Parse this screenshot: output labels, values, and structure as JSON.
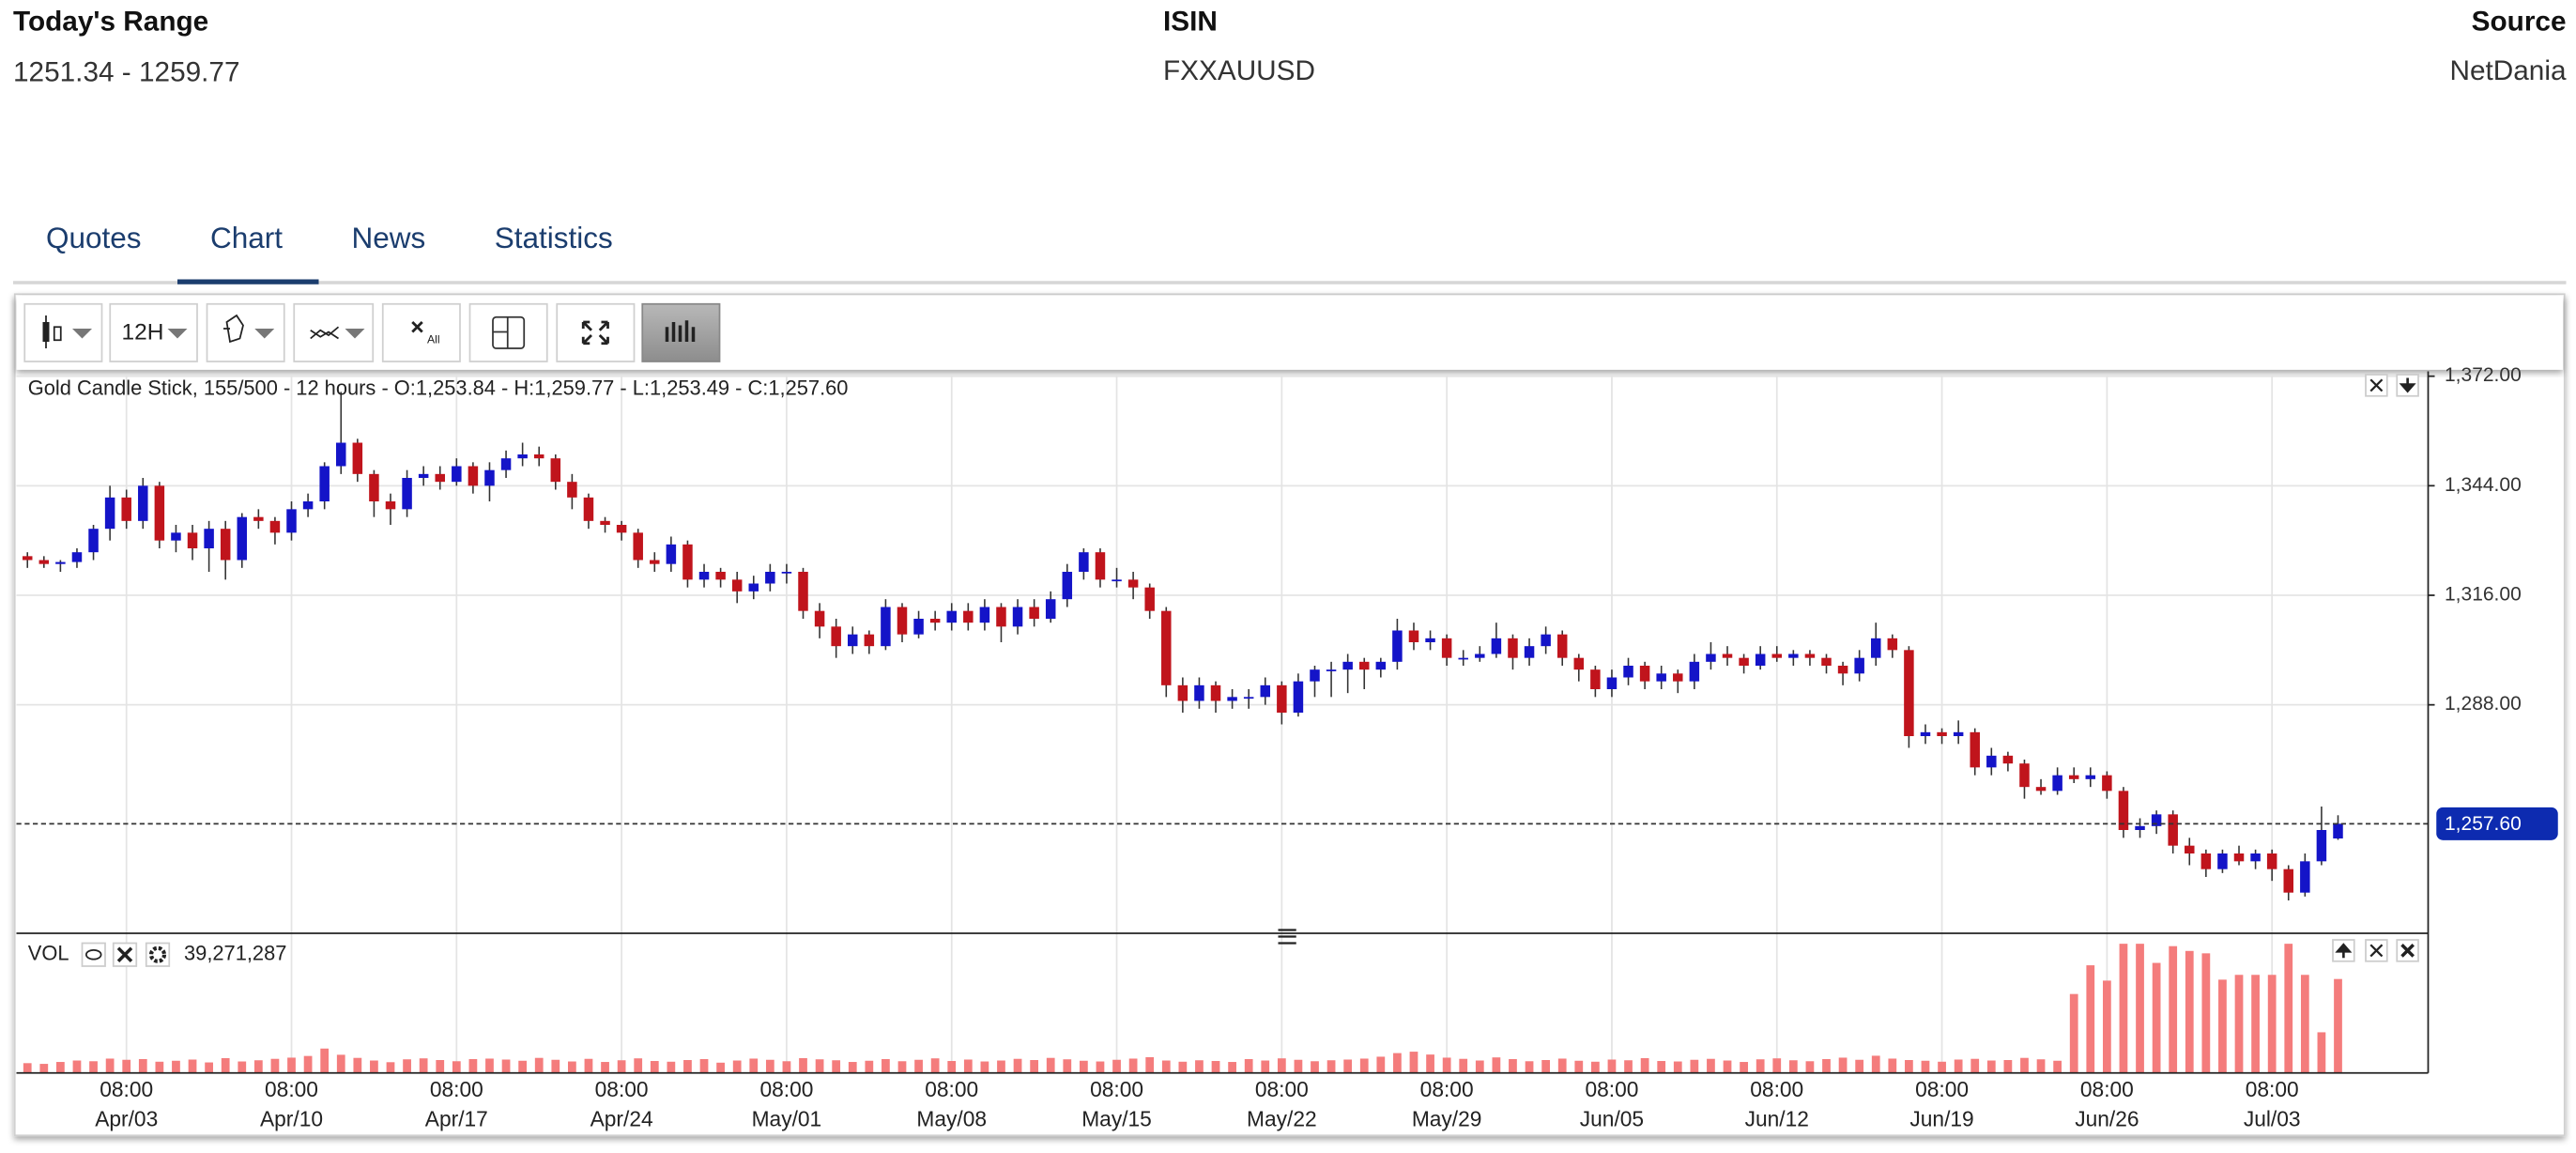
{
  "header": {
    "range_label": "Today's Range",
    "range_value": "1251.34 - 1259.77",
    "isin_label": "ISIN",
    "isin_value": "FXXAUUSD",
    "source_label": "Source",
    "source_value": "NetDania"
  },
  "tabs": [
    "Quotes",
    "Chart",
    "News",
    "Statistics"
  ],
  "toolbar": {
    "interval": "12H",
    "clear_all": "All"
  },
  "chart_data": {
    "type": "candlestick",
    "title": "Gold Candle Stick, 155/500 - 12 hours - O:1,253.84 - H:1,259.77 - L:1,253.49 - C:1,257.60",
    "up_color": "#1414c8",
    "down_color": "#c0141c",
    "ylim": [
      1229.6,
      1372.4
    ],
    "yticks": [
      {
        "value": 1372,
        "label": "1,372.00"
      },
      {
        "value": 1344,
        "label": "1,344.00"
      },
      {
        "value": 1316,
        "label": "1,316.00"
      },
      {
        "value": 1288,
        "label": "1,288.00"
      }
    ],
    "last_price": {
      "value": 1257.6,
      "label": "1,257.60",
      "color": "#0d2bb0"
    },
    "xticks": [
      {
        "value": 6,
        "time": "08:00",
        "label": "Apr/03"
      },
      {
        "value": 16,
        "time": "08:00",
        "label": "Apr/10"
      },
      {
        "value": 26,
        "time": "08:00",
        "label": "Apr/17"
      },
      {
        "value": 36,
        "time": "08:00",
        "label": "Apr/24"
      },
      {
        "value": 46,
        "time": "08:00",
        "label": "May/01"
      },
      {
        "value": 56,
        "time": "08:00",
        "label": "May/08"
      },
      {
        "value": 66,
        "time": "08:00",
        "label": "May/15"
      },
      {
        "value": 76,
        "time": "08:00",
        "label": "May/22"
      },
      {
        "value": 86,
        "time": "08:00",
        "label": "May/29"
      },
      {
        "value": 96,
        "time": "08:00",
        "label": "Jun/05"
      },
      {
        "value": 106,
        "time": "08:00",
        "label": "Jun/12"
      },
      {
        "value": 116,
        "time": "08:00",
        "label": "Jun/19"
      },
      {
        "value": 126,
        "time": "08:00",
        "label": "Jun/26"
      },
      {
        "value": 136,
        "time": "08:00",
        "label": "Jul/03"
      }
    ],
    "grid": true,
    "candles": [
      [
        1326,
        1327,
        1323,
        1325
      ],
      [
        1325,
        1326,
        1323,
        1324
      ],
      [
        1324,
        1325,
        1322,
        1324.5
      ],
      [
        1324.5,
        1328,
        1323,
        1327
      ],
      [
        1327,
        1334,
        1325,
        1333
      ],
      [
        1333,
        1344,
        1330,
        1341
      ],
      [
        1341,
        1343,
        1333,
        1335
      ],
      [
        1335,
        1346,
        1333,
        1344
      ],
      [
        1344,
        1345,
        1328,
        1330
      ],
      [
        1330,
        1334,
        1327,
        1332
      ],
      [
        1332,
        1334,
        1325,
        1328
      ],
      [
        1328,
        1335,
        1322,
        1333
      ],
      [
        1333,
        1335,
        1320,
        1325
      ],
      [
        1325,
        1337,
        1323,
        1336
      ],
      [
        1336,
        1338,
        1333,
        1335
      ],
      [
        1335,
        1336,
        1329,
        1332
      ],
      [
        1332,
        1340,
        1330,
        1338
      ],
      [
        1338,
        1342,
        1336,
        1340
      ],
      [
        1340,
        1350,
        1338,
        1349
      ],
      [
        1349,
        1368,
        1347,
        1355
      ],
      [
        1355,
        1356,
        1345,
        1347
      ],
      [
        1347,
        1348,
        1336,
        1340
      ],
      [
        1340,
        1342,
        1334,
        1338
      ],
      [
        1338,
        1348,
        1336,
        1346
      ],
      [
        1346,
        1349,
        1344,
        1347
      ],
      [
        1347,
        1349,
        1343,
        1345
      ],
      [
        1345,
        1351,
        1344,
        1349
      ],
      [
        1349,
        1350,
        1342,
        1344
      ],
      [
        1344,
        1350,
        1340,
        1348
      ],
      [
        1348,
        1353,
        1346,
        1351
      ],
      [
        1351,
        1355,
        1349,
        1352
      ],
      [
        1352,
        1354,
        1349,
        1351
      ],
      [
        1351,
        1352,
        1343,
        1345
      ],
      [
        1345,
        1347,
        1338,
        1341
      ],
      [
        1341,
        1342,
        1333,
        1335
      ],
      [
        1335,
        1336,
        1332,
        1334
      ],
      [
        1334,
        1335,
        1330,
        1332
      ],
      [
        1332,
        1333,
        1323,
        1325
      ],
      [
        1325,
        1327,
        1322,
        1324
      ],
      [
        1324,
        1331,
        1322,
        1329
      ],
      [
        1329,
        1330,
        1318,
        1320
      ],
      [
        1320,
        1324,
        1318,
        1322
      ],
      [
        1322,
        1323,
        1318,
        1320
      ],
      [
        1320,
        1322,
        1314,
        1317
      ],
      [
        1317,
        1321,
        1315,
        1319
      ],
      [
        1319,
        1324,
        1317,
        1322
      ],
      [
        1322,
        1324,
        1319,
        1322
      ],
      [
        1322,
        1323,
        1310,
        1312
      ],
      [
        1312,
        1314,
        1305,
        1308
      ],
      [
        1308,
        1310,
        1300,
        1303
      ],
      [
        1303,
        1308,
        1301,
        1306
      ],
      [
        1306,
        1307,
        1301,
        1303
      ],
      [
        1303,
        1315,
        1302,
        1313
      ],
      [
        1313,
        1314,
        1304,
        1306
      ],
      [
        1306,
        1312,
        1305,
        1310
      ],
      [
        1310,
        1312,
        1307,
        1309
      ],
      [
        1309,
        1314,
        1307,
        1312
      ],
      [
        1312,
        1314,
        1307,
        1309
      ],
      [
        1309,
        1315,
        1307,
        1313
      ],
      [
        1313,
        1314,
        1304,
        1308
      ],
      [
        1308,
        1315,
        1306,
        1313
      ],
      [
        1313,
        1315,
        1308,
        1310
      ],
      [
        1310,
        1317,
        1309,
        1315
      ],
      [
        1315,
        1324,
        1313,
        1322
      ],
      [
        1322,
        1328,
        1320,
        1327
      ],
      [
        1327,
        1328,
        1318,
        1320
      ],
      [
        1320,
        1323,
        1318,
        1320
      ],
      [
        1320,
        1322,
        1315,
        1318
      ],
      [
        1318,
        1319,
        1310,
        1312
      ],
      [
        1312,
        1313,
        1290,
        1293
      ],
      [
        1293,
        1295,
        1286,
        1289
      ],
      [
        1289,
        1295,
        1287,
        1293
      ],
      [
        1293,
        1294,
        1286,
        1289
      ],
      [
        1289,
        1292,
        1287,
        1290
      ],
      [
        1290,
        1292,
        1287,
        1290
      ],
      [
        1290,
        1295,
        1288,
        1293
      ],
      [
        1293,
        1294,
        1283,
        1286
      ],
      [
        1286,
        1296,
        1285,
        1294
      ],
      [
        1294,
        1298,
        1290,
        1297
      ],
      [
        1297,
        1299,
        1290,
        1297
      ],
      [
        1297,
        1301,
        1291,
        1299
      ],
      [
        1299,
        1300,
        1292,
        1297
      ],
      [
        1297,
        1300,
        1295,
        1299
      ],
      [
        1299,
        1310,
        1297,
        1307
      ],
      [
        1307,
        1309,
        1302,
        1304
      ],
      [
        1304,
        1307,
        1302,
        1305
      ],
      [
        1305,
        1306,
        1298,
        1300
      ],
      [
        1300,
        1302,
        1298,
        1300
      ],
      [
        1300,
        1303,
        1299,
        1301
      ],
      [
        1301,
        1309,
        1300,
        1305
      ],
      [
        1305,
        1306,
        1297,
        1300
      ],
      [
        1300,
        1305,
        1298,
        1303
      ],
      [
        1303,
        1308,
        1301,
        1306
      ],
      [
        1306,
        1307,
        1298,
        1300
      ],
      [
        1300,
        1301,
        1294,
        1297
      ],
      [
        1297,
        1298,
        1290,
        1292
      ],
      [
        1292,
        1297,
        1290,
        1295
      ],
      [
        1295,
        1300,
        1293,
        1298
      ],
      [
        1298,
        1299,
        1292,
        1294
      ],
      [
        1294,
        1298,
        1292,
        1296
      ],
      [
        1296,
        1297,
        1291,
        1294
      ],
      [
        1294,
        1301,
        1292,
        1299
      ],
      [
        1299,
        1304,
        1297,
        1301
      ],
      [
        1301,
        1303,
        1298,
        1300
      ],
      [
        1300,
        1301,
        1296,
        1298
      ],
      [
        1298,
        1303,
        1297,
        1301
      ],
      [
        1301,
        1303,
        1299,
        1300
      ],
      [
        1300,
        1302,
        1298,
        1301
      ],
      [
        1301,
        1302,
        1298,
        1300
      ],
      [
        1300,
        1301,
        1296,
        1298
      ],
      [
        1298,
        1299,
        1293,
        1296
      ],
      [
        1296,
        1302,
        1294,
        1300
      ],
      [
        1300,
        1309,
        1298,
        1305
      ],
      [
        1305,
        1306,
        1300,
        1302
      ],
      [
        1302,
        1303,
        1277,
        1280
      ],
      [
        1280,
        1283,
        1278,
        1281
      ],
      [
        1281,
        1282,
        1278,
        1280
      ],
      [
        1280,
        1284,
        1278,
        1281
      ],
      [
        1281,
        1282,
        1270,
        1272
      ],
      [
        1272,
        1277,
        1270,
        1275
      ],
      [
        1275,
        1276,
        1271,
        1273
      ],
      [
        1273,
        1274,
        1264,
        1267
      ],
      [
        1267,
        1269,
        1265,
        1266
      ],
      [
        1266,
        1272,
        1265,
        1270
      ],
      [
        1270,
        1272,
        1268,
        1269
      ],
      [
        1269,
        1272,
        1267,
        1270
      ],
      [
        1270,
        1271,
        1264,
        1266
      ],
      [
        1266,
        1267,
        1254,
        1256
      ],
      [
        1256,
        1259,
        1254,
        1257
      ],
      [
        1257,
        1261,
        1255,
        1260
      ],
      [
        1260,
        1261,
        1250,
        1252
      ],
      [
        1252,
        1254,
        1247,
        1250
      ],
      [
        1250,
        1251,
        1244,
        1246
      ],
      [
        1246,
        1251,
        1245,
        1250
      ],
      [
        1250,
        1252,
        1247,
        1248
      ],
      [
        1248,
        1251,
        1246,
        1250
      ],
      [
        1250,
        1251,
        1243,
        1246
      ],
      [
        1246,
        1247,
        1238,
        1240
      ],
      [
        1240,
        1250,
        1239,
        1248
      ],
      [
        1248,
        1262,
        1247,
        1256
      ],
      [
        1253.84,
        1259.77,
        1253.49,
        1257.6
      ]
    ],
    "volume": {
      "name": "VOL",
      "color": "#f47c7c",
      "ylim": [
        0,
        57000000
      ],
      "last": {
        "value": 39271287,
        "label": "39,271,287"
      },
      "values": [
        4100000,
        3800000,
        4600000,
        5200000,
        4900000,
        6000000,
        5500000,
        5800000,
        4700000,
        5100000,
        5600000,
        4400000,
        6200000,
        4800000,
        5300000,
        5900000,
        6400000,
        7100000,
        10200000,
        7600000,
        6300000,
        5200000,
        4500000,
        5700000,
        6100000,
        5400000,
        4900000,
        5800000,
        6000000,
        5600000,
        5100000,
        6300000,
        5500000,
        4800000,
        5900000,
        4600000,
        5300000,
        6100000,
        5000000,
        4700000,
        5400000,
        5800000,
        4300000,
        5200000,
        6000000,
        5500000,
        4900000,
        6200000,
        5700000,
        5300000,
        4600000,
        5100000,
        5800000,
        4900000,
        5500000,
        6100000,
        5000000,
        5600000,
        4800000,
        5200000,
        5900000,
        5400000,
        6300000,
        5700000,
        5100000,
        4800000,
        5500000,
        6000000,
        6600000,
        5200000,
        4700000,
        5300000,
        5000000,
        4600000,
        5800000,
        5200000,
        6100000,
        5500000,
        4900000,
        5300000,
        5600000,
        6000000,
        6800000,
        8300000,
        8900000,
        7700000,
        6400000,
        5900000,
        5200000,
        6500000,
        5800000,
        4900000,
        5400000,
        6000000,
        5100000,
        4700000,
        5600000,
        5300000,
        6200000,
        5000000,
        4800000,
        5500000,
        5900000,
        5200000,
        4600000,
        5700000,
        6100000,
        5300000,
        4900000,
        5800000,
        6400000,
        5500000,
        7200000,
        6000000,
        5400000,
        5100000,
        4700000,
        5600000,
        5900000,
        5200000,
        5400000,
        6300000,
        5700000,
        5100000,
        33000000,
        45000000,
        38600000,
        54000000,
        54000000,
        46000000,
        53000000,
        51000000,
        50000000,
        39000000,
        41000000,
        41000000,
        41000000,
        54000000,
        41000000,
        17000000,
        39271287
      ]
    }
  }
}
